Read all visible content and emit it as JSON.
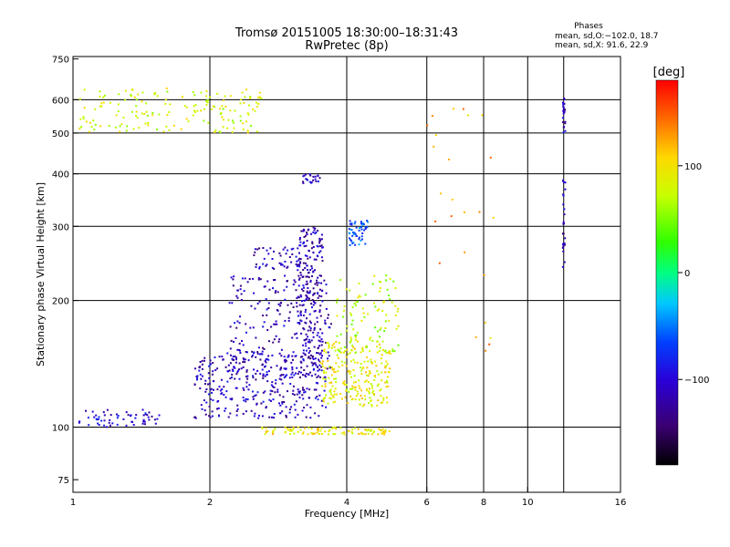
{
  "chart_data": {
    "type": "scatter",
    "title": "Tromsø 20151005 18:30:00–18:31:43",
    "subtitle": "RwPretec (8p)",
    "xlabel": "Frequency [MHz]",
    "ylabel": "Stationary phase Virtual Height [km]",
    "x_scale": "log",
    "y_scale": "log",
    "xlim": [
      1,
      16
    ],
    "ylim": [
      70,
      760
    ],
    "x_ticks": [
      1,
      2,
      4,
      6,
      8,
      10,
      16
    ],
    "x_tick_labels": [
      "1",
      "2",
      "4",
      "6",
      "8",
      "10",
      "16"
    ],
    "y_ticks": [
      75,
      100,
      200,
      300,
      400,
      500,
      600,
      750
    ],
    "y_tick_labels": [
      "75",
      "100",
      "200",
      "300",
      "400",
      "500",
      "600",
      "750"
    ],
    "x_grid": [
      2,
      4,
      6,
      8,
      10,
      12
    ],
    "y_grid": [
      100,
      200,
      300,
      400,
      500,
      600
    ],
    "grid": true,
    "stats": {
      "header": "Phases",
      "line_o": "mean, sd,O:−102.0, 18.7",
      "line_x": "mean, sd,X:  91.6, 22.9"
    },
    "colorbar": {
      "label": "[deg]",
      "range": [
        -180,
        180
      ],
      "ticks": [
        100,
        0,
        -100
      ],
      "tick_labels": [
        "100",
        "0",
        "−100"
      ]
    },
    "clusters": [
      {
        "name": "lowF-E-trace",
        "x_range": [
          1.03,
          1.55
        ],
        "y_range": [
          100,
          110
        ],
        "n": 60,
        "phase": -105
      },
      {
        "name": "spread-F-top",
        "x_range": [
          1.03,
          2.6
        ],
        "y_range": [
          500,
          640
        ],
        "n": 170,
        "phase": 80
      },
      {
        "name": "F-lower-band",
        "x_range": [
          1.85,
          3.6
        ],
        "y_range": [
          105,
          150
        ],
        "n": 320,
        "phase": -110
      },
      {
        "name": "F-middle-band",
        "x_range": [
          2.2,
          3.7
        ],
        "y_range": [
          130,
          230
        ],
        "n": 260,
        "phase": -115
      },
      {
        "name": "F-cusp-column",
        "x_range": [
          3.1,
          3.55
        ],
        "y_range": [
          140,
          300
        ],
        "n": 180,
        "phase": -115
      },
      {
        "name": "arc-2.5-3.3",
        "x_range": [
          2.5,
          3.35
        ],
        "y_range": [
          235,
          268
        ],
        "n": 60,
        "phase": -115
      },
      {
        "name": "X-mode-yellow",
        "x_range": [
          3.5,
          5.0
        ],
        "y_range": [
          112,
          160
        ],
        "n": 240,
        "phase": 90
      },
      {
        "name": "X-mode-upper",
        "x_range": [
          3.8,
          5.2
        ],
        "y_range": [
          150,
          230
        ],
        "n": 100,
        "phase": 70
      },
      {
        "name": "cluster-4.2-300",
        "x_range": [
          4.05,
          4.45
        ],
        "y_range": [
          270,
          310
        ],
        "n": 50,
        "phase": -60
      },
      {
        "name": "cluster-3.3-390",
        "x_range": [
          3.2,
          3.5
        ],
        "y_range": [
          380,
          400
        ],
        "n": 22,
        "phase": -110
      },
      {
        "name": "bottom-row-100",
        "x_range": [
          2.6,
          5.0
        ],
        "y_range": [
          96,
          100
        ],
        "n": 100,
        "phase": 95
      },
      {
        "name": "vertical-12MHz-high",
        "x_range": [
          11.95,
          12.1
        ],
        "y_range": [
          490,
          615
        ],
        "n": 22,
        "phase": -115
      },
      {
        "name": "vertical-12MHz-mid",
        "x_range": [
          11.95,
          12.1
        ],
        "y_range": [
          235,
          390
        ],
        "n": 25,
        "phase": -115
      },
      {
        "name": "sparse-6-8MHz",
        "x_range": [
          5.8,
          8.6
        ],
        "y_range": [
          150,
          600
        ],
        "n": 25,
        "phase": 120
      }
    ]
  }
}
